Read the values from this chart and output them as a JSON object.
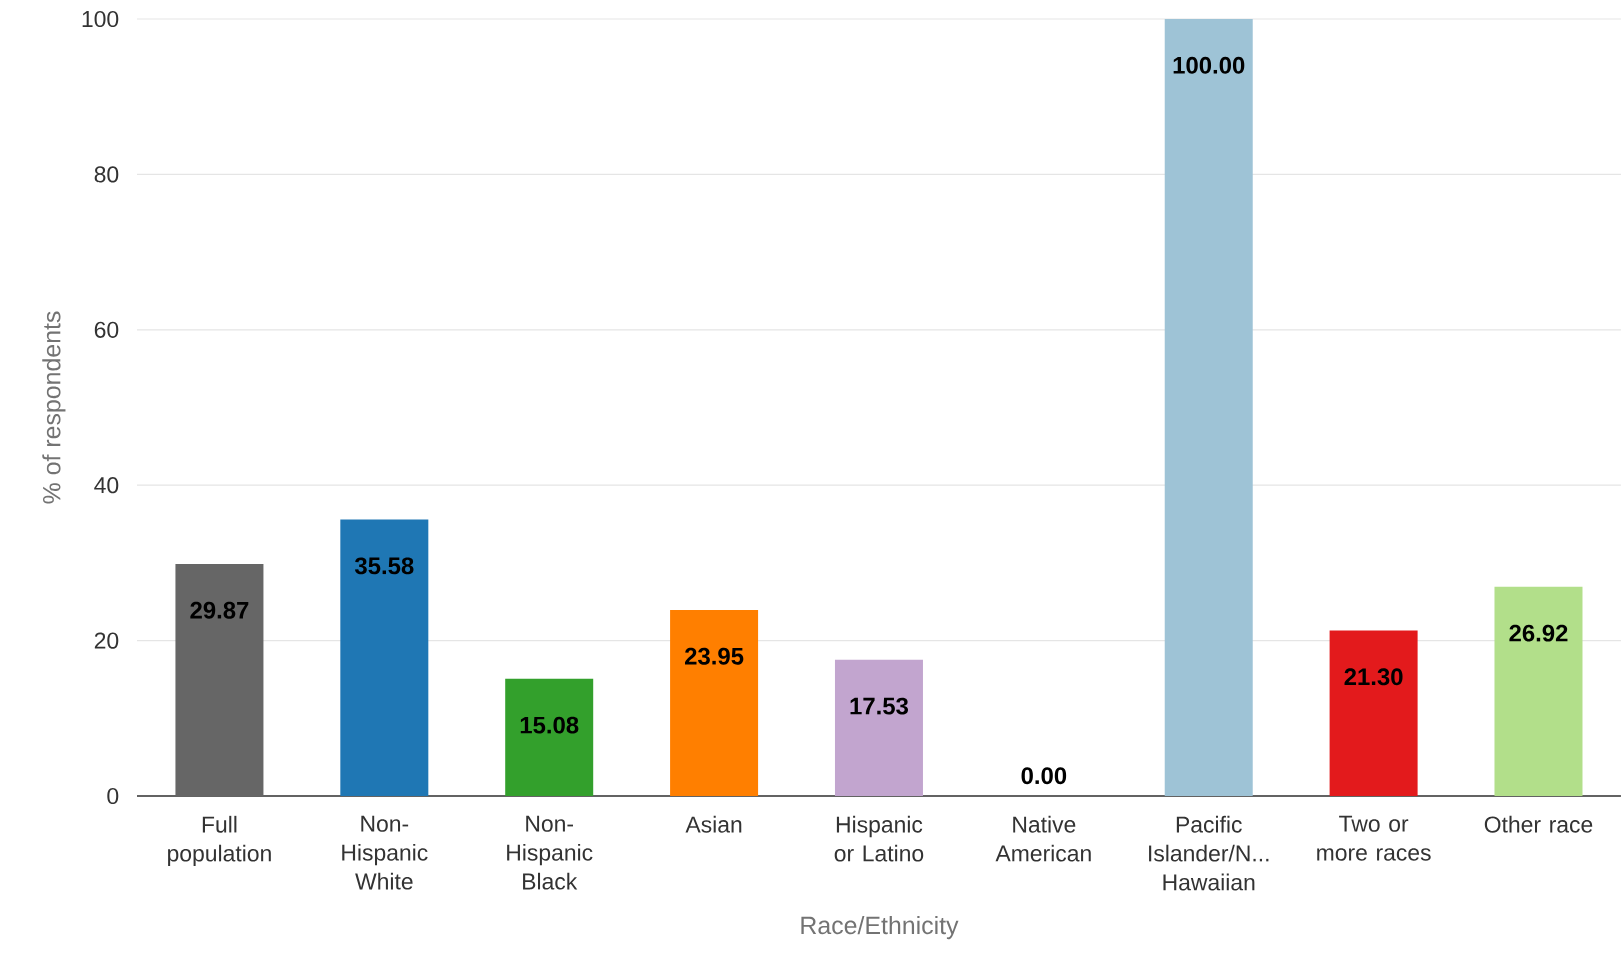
{
  "chart_data": {
    "type": "bar",
    "xlabel": "Race/Ethnicity",
    "ylabel": "% of respondents",
    "categories": [
      "Full population",
      "Non-Hispanic White",
      "Non-Hispanic Black",
      "Asian",
      "Hispanic or Latino",
      "Native American",
      "Pacific Islander/N... Hawaiian",
      "Two or more races",
      "Other race"
    ],
    "values": [
      29.87,
      35.58,
      15.08,
      23.95,
      17.53,
      0.0,
      100.0,
      21.3,
      26.92
    ],
    "value_labels": [
      "29.87",
      "35.58",
      "15.08",
      "23.95",
      "17.53",
      "0.00",
      "100.00",
      "21.30",
      "26.92"
    ],
    "colors": [
      "#666666",
      "#1f77b4",
      "#33a02c",
      "#ff7f00",
      "#c2a5cf",
      "#fdbf6f",
      "#9ec3d6",
      "#e31a1c",
      "#b2df8a"
    ],
    "ylim": [
      0,
      100
    ],
    "yticks": [
      0,
      20,
      40,
      60,
      80,
      100
    ],
    "grid": "y"
  }
}
